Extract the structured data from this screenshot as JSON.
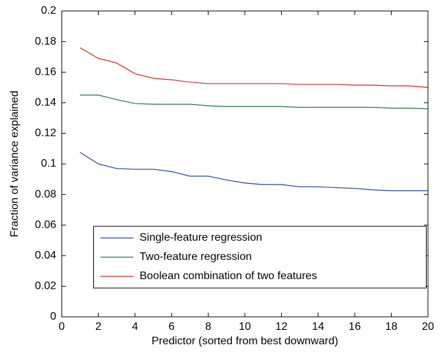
{
  "chart_data": {
    "type": "line",
    "x_label": "Predictor (sorted from best downward)",
    "y_label": "Fraction of variance explained",
    "x": [
      1,
      2,
      3,
      4,
      5,
      6,
      7,
      8,
      9,
      10,
      11,
      12,
      13,
      14,
      15,
      16,
      17,
      18,
      19,
      20
    ],
    "series": [
      {
        "name": "Single-feature regression",
        "color": "#2040a8",
        "values": [
          0.1075,
          0.1,
          0.097,
          0.0965,
          0.0965,
          0.095,
          0.092,
          0.092,
          0.0895,
          0.0875,
          0.0865,
          0.0865,
          0.085,
          0.085,
          0.0845,
          0.084,
          0.083,
          0.0825,
          0.0825,
          0.0825
        ]
      },
      {
        "name": "Two-feature regression",
        "color": "#1e7a3c",
        "values": [
          0.145,
          0.145,
          0.142,
          0.1395,
          0.139,
          0.139,
          0.139,
          0.138,
          0.1375,
          0.1375,
          0.1375,
          0.1375,
          0.137,
          0.137,
          0.137,
          0.137,
          0.137,
          0.1365,
          0.1365,
          0.136
        ]
      },
      {
        "name": "Boolean combination of two features",
        "color": "#e02020",
        "values": [
          0.176,
          0.169,
          0.166,
          0.159,
          0.156,
          0.155,
          0.1535,
          0.1525,
          0.1525,
          0.1525,
          0.1525,
          0.1525,
          0.152,
          0.152,
          0.152,
          0.1515,
          0.1515,
          0.151,
          0.151,
          0.15
        ]
      }
    ],
    "xlim": [
      0,
      20
    ],
    "xticks": [
      0,
      2,
      4,
      6,
      8,
      10,
      12,
      14,
      16,
      18,
      20
    ],
    "ylim": [
      0,
      0.2
    ],
    "yticks": [
      0,
      0.02,
      0.04,
      0.06,
      0.08,
      0.1,
      0.12,
      0.14,
      0.16,
      0.18,
      0.2
    ],
    "grid": false,
    "legend": "lower center"
  }
}
